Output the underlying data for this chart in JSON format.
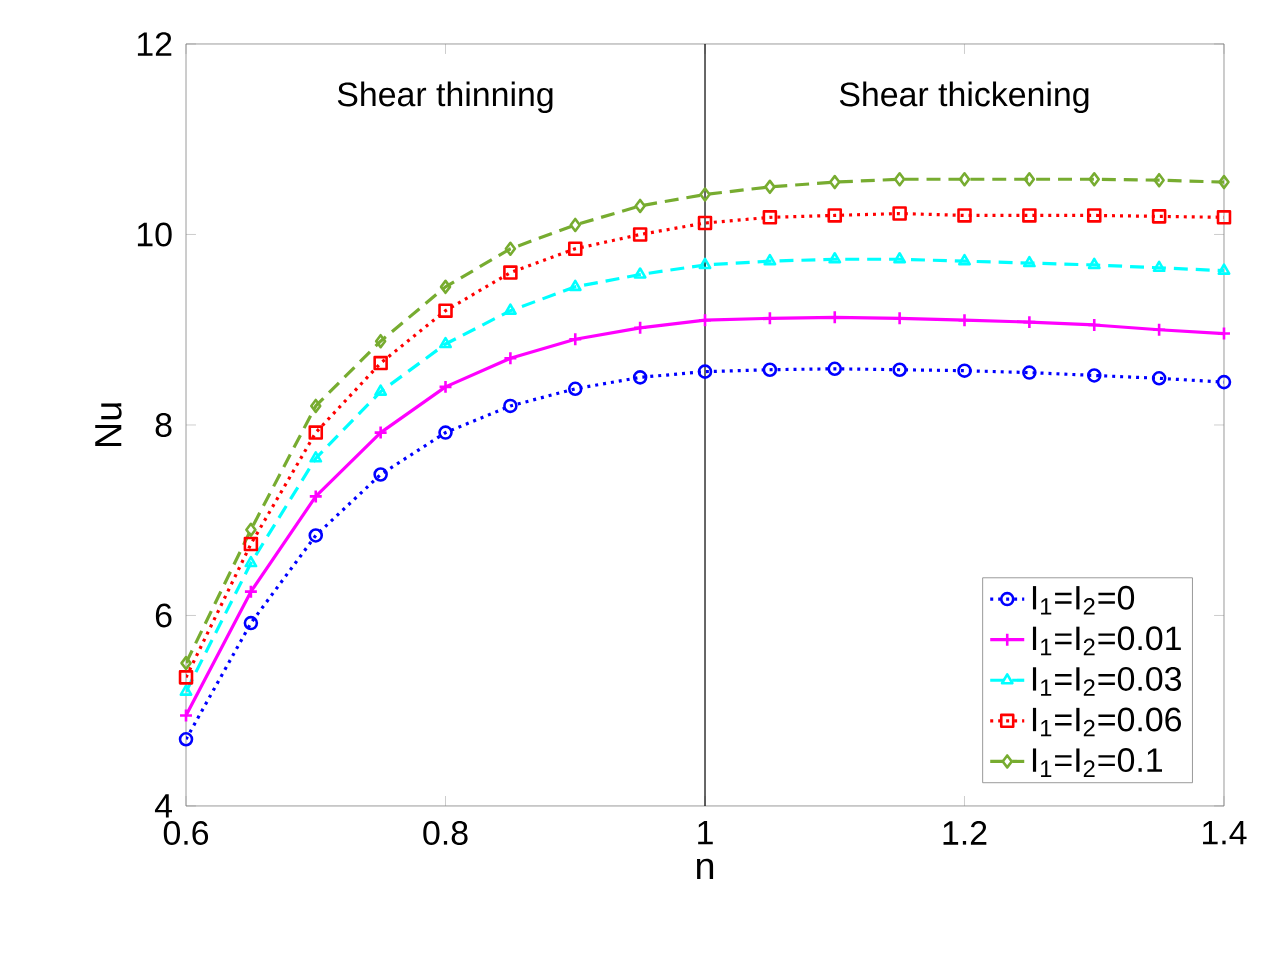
{
  "chart_data": {
    "type": "line",
    "xlabel": "n",
    "ylabel": "Nu",
    "x": [
      0.6,
      0.65,
      0.7,
      0.75,
      0.8,
      0.85,
      0.9,
      0.95,
      1.0,
      1.05,
      1.1,
      1.15,
      1.2,
      1.25,
      1.3,
      1.35,
      1.4
    ],
    "xlim": [
      0.6,
      1.4
    ],
    "xticks": [
      0.6,
      0.8,
      1,
      1.2,
      1.4
    ],
    "ylim": [
      4,
      12
    ],
    "yticks": [
      4,
      6,
      8,
      10,
      12
    ],
    "grid": false,
    "legend": "bottom right",
    "annotations": [
      "Shear thinning",
      "Shear thickening"
    ],
    "ref_lines": [
      {
        "axis": "x",
        "value": 1,
        "color": "#000000"
      }
    ],
    "series": [
      {
        "name": "I$_{1}$=I$_{2}$=0",
        "color": "#0000ff",
        "marker": "circle",
        "line_style": "dotted",
        "values": [
          4.7,
          5.92,
          6.84,
          7.48,
          7.92,
          8.2,
          8.38,
          8.5,
          8.56,
          8.58,
          8.59,
          8.58,
          8.57,
          8.55,
          8.52,
          8.49,
          8.45
        ]
      },
      {
        "name": "I$_{1}$=I$_{2}$=0.01",
        "color": "#ff00ff",
        "marker": "cross",
        "line_style": "solid",
        "values": [
          4.95,
          6.25,
          7.25,
          7.92,
          8.4,
          8.7,
          8.9,
          9.02,
          9.1,
          9.12,
          9.13,
          9.12,
          9.1,
          9.08,
          9.05,
          9.0,
          8.96
        ]
      },
      {
        "name": "I$_{1}$=I$_{2}$=0.03",
        "color": "#00ffff",
        "marker": "triangle",
        "line_style": "dashed",
        "values": [
          5.2,
          6.55,
          7.65,
          8.35,
          8.85,
          9.2,
          9.45,
          9.58,
          9.68,
          9.72,
          9.74,
          9.74,
          9.72,
          9.7,
          9.68,
          9.65,
          9.62
        ]
      },
      {
        "name": "I$_{1}$=I$_{2}$=0.06",
        "color": "#ff0000",
        "marker": "square",
        "line_style": "dotted",
        "values": [
          5.35,
          6.75,
          7.92,
          8.65,
          9.2,
          9.6,
          9.85,
          10.0,
          10.12,
          10.18,
          10.2,
          10.22,
          10.2,
          10.2,
          10.2,
          10.19,
          10.18
        ]
      },
      {
        "name": "I$_{1}$=I$_{2}$=0.1",
        "color": "#77ac30",
        "marker": "diamond",
        "line_style": "dashed",
        "values": [
          5.5,
          6.9,
          8.2,
          8.88,
          9.45,
          9.85,
          10.1,
          10.3,
          10.42,
          10.5,
          10.55,
          10.58,
          10.58,
          10.58,
          10.58,
          10.57,
          10.55
        ]
      }
    ]
  }
}
